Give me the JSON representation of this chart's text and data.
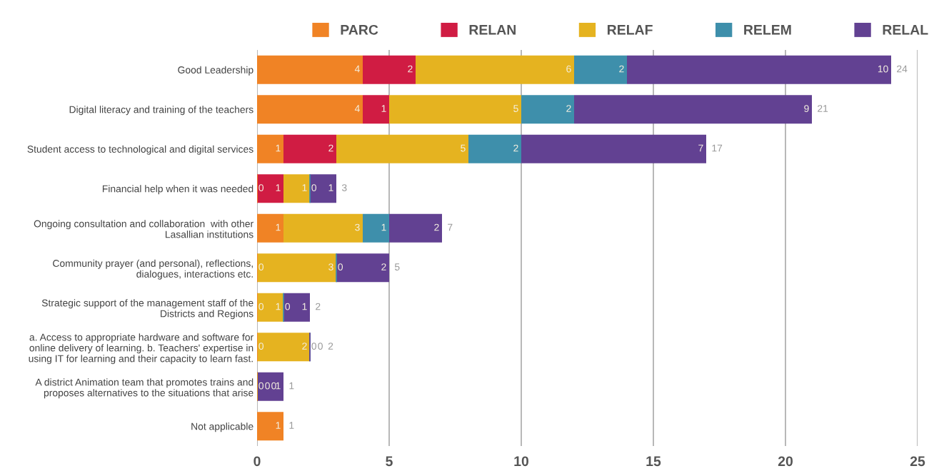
{
  "chart_data": {
    "type": "bar",
    "orientation": "horizontal",
    "stacked": true,
    "categories": [
      "Good Leadership",
      "Digital literacy and training of the teachers",
      "Student access to technological and digital services",
      "Financial help when it was needed",
      "Ongoing consultation and collaboration  with other\nLasallian institutions",
      "Community prayer (and personal), reflections,\ndialogues, interactions etc.",
      "Strategic support of the management staff of the\nDistricts and Regions",
      "a. Access to appropriate hardware and software for\nonline delivery of learning. b. Teachers' expertise in\nusing IT for learning and their capacity to learn fast.",
      "A district Animation team that promotes trains and\nproposes alternatives to the situations that arise",
      "Not applicable"
    ],
    "series": [
      {
        "name": "PARC",
        "color": "#f08325",
        "values": [
          4,
          4,
          1,
          0,
          1,
          0,
          0,
          0,
          0,
          1
        ],
        "value_labels": [
          "4",
          "4",
          "1",
          "0",
          "1",
          "0",
          "0",
          "0",
          "0",
          "1"
        ]
      },
      {
        "name": "RELAN",
        "color": "#d01c43",
        "values": [
          2,
          1,
          2,
          1,
          null,
          null,
          null,
          null,
          0,
          null
        ],
        "value_labels": [
          "2",
          "1",
          "2",
          "1",
          null,
          null,
          null,
          null,
          "0",
          null
        ]
      },
      {
        "name": "RELAF",
        "color": "#e5b320",
        "values": [
          6,
          5,
          5,
          1,
          3,
          3,
          1,
          2,
          0,
          null
        ],
        "value_labels": [
          "6",
          "5",
          "5",
          "1",
          "3",
          "3",
          "1",
          "2",
          "0",
          null
        ]
      },
      {
        "name": "RELEM",
        "color": "#3e8fab",
        "values": [
          2,
          2,
          2,
          0,
          1,
          0,
          0,
          0,
          null,
          null
        ],
        "value_labels": [
          "2",
          "2",
          "2",
          "0",
          "1",
          "0",
          "0",
          "0",
          null,
          null
        ]
      },
      {
        "name": "RELAL",
        "color": "#624192",
        "values": [
          10,
          9,
          7,
          1,
          2,
          2,
          1,
          0,
          1,
          null
        ],
        "value_labels": [
          "10",
          "9",
          "7",
          "1",
          "2",
          "2",
          "1",
          "0",
          "1",
          null
        ]
      }
    ],
    "totals": [
      "24",
      "21",
      "17",
      "3",
      "7",
      "5",
      "2",
      "2",
      "1",
      "1"
    ],
    "xlim": [
      0,
      25
    ],
    "xticks": [
      0,
      5,
      10,
      15,
      20,
      25
    ],
    "grid": "x",
    "legend": "top"
  }
}
